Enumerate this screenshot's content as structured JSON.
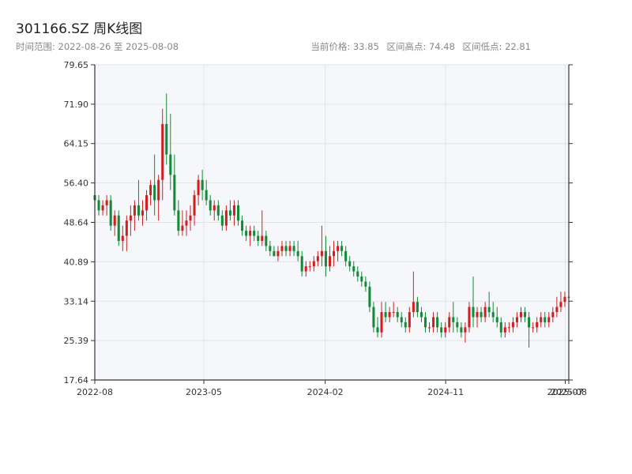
{
  "header": {
    "title": "301166.SZ 周K线图",
    "range_text": "时间范围: 2022-08-26 至 2025-08-08",
    "current_price": "当前价格: 33.85",
    "high": "区间高点: 74.48",
    "low": "区间低点: 22.81"
  },
  "colors": {
    "up": "#d11f1f",
    "down": "#138a36",
    "plot_bg": "#f5f7fa",
    "grid": "#dfe3e8",
    "axis": "#333333"
  },
  "chart_data": {
    "type": "candlestick",
    "title": "301166.SZ 周K线图",
    "ylim": [
      17.64,
      79.65
    ],
    "y_ticks": [
      "79.65",
      "71.90",
      "64.15",
      "56.40",
      "48.64",
      "40.89",
      "33.14",
      "25.39",
      "17.64"
    ],
    "x_range": [
      "2022-08-26",
      "2025-08-08"
    ],
    "x_ticks": [
      {
        "label": "2022-08",
        "date": "2022-08-26"
      },
      {
        "label": "2023-05",
        "date": "2023-05-01"
      },
      {
        "label": "2024-02",
        "date": "2024-02-01"
      },
      {
        "label": "2024-11",
        "date": "2024-11-01"
      },
      {
        "label": "2025-07",
        "date": "2025-07-31"
      },
      {
        "label": "2025-08",
        "date": "2025-08-08"
      }
    ],
    "grid": true,
    "ohlc_weekly": [
      [
        54,
        56,
        51,
        53
      ],
      [
        53,
        54,
        50,
        51
      ],
      [
        51,
        53,
        50,
        52
      ],
      [
        52,
        54,
        50,
        53
      ],
      [
        53,
        54,
        47,
        48
      ],
      [
        48,
        51,
        46,
        50
      ],
      [
        50,
        51,
        44,
        45
      ],
      [
        45,
        48,
        43,
        46
      ],
      [
        46,
        50,
        43,
        49
      ],
      [
        49,
        52,
        46,
        50
      ],
      [
        50,
        53,
        47,
        52
      ],
      [
        52,
        57,
        49,
        50
      ],
      [
        50,
        53,
        48,
        51
      ],
      [
        51,
        55,
        49,
        54
      ],
      [
        54,
        57,
        52,
        56
      ],
      [
        56,
        62,
        50,
        53
      ],
      [
        53,
        58,
        49,
        57
      ],
      [
        57,
        71,
        53,
        68
      ],
      [
        68,
        74,
        60,
        62
      ],
      [
        62,
        70,
        55,
        58
      ],
      [
        58,
        62,
        50,
        51
      ],
      [
        51,
        53,
        46,
        47
      ],
      [
        47,
        51,
        46,
        48
      ],
      [
        48,
        51,
        46,
        49
      ],
      [
        49,
        52,
        47,
        50
      ],
      [
        50,
        55,
        48,
        54
      ],
      [
        54,
        58,
        52,
        57
      ],
      [
        57,
        59,
        53,
        55
      ],
      [
        55,
        57,
        52,
        53
      ],
      [
        53,
        54,
        50,
        51
      ],
      [
        51,
        53,
        49,
        52
      ],
      [
        52,
        53,
        49,
        50
      ],
      [
        50,
        51,
        47,
        48
      ],
      [
        48,
        52,
        47,
        51
      ],
      [
        51,
        53,
        49,
        50
      ],
      [
        50,
        53,
        48,
        52
      ],
      [
        52,
        53,
        48,
        49
      ],
      [
        49,
        50,
        46,
        47
      ],
      [
        47,
        48,
        45,
        46
      ],
      [
        46,
        48,
        44,
        47
      ],
      [
        47,
        48,
        45,
        46
      ],
      [
        46,
        47,
        44,
        45
      ],
      [
        45,
        51,
        44,
        46
      ],
      [
        46,
        47,
        43,
        44
      ],
      [
        44,
        45,
        42,
        43
      ],
      [
        43,
        44,
        42,
        42
      ],
      [
        42,
        44,
        41,
        43
      ],
      [
        43,
        45,
        42,
        44
      ],
      [
        44,
        45,
        42,
        43
      ],
      [
        43,
        45,
        42,
        44
      ],
      [
        44,
        45,
        42,
        43
      ],
      [
        43,
        45,
        41,
        42
      ],
      [
        42,
        43,
        38,
        39
      ],
      [
        39,
        41,
        38,
        40
      ],
      [
        40,
        41,
        39,
        40
      ],
      [
        40,
        42,
        39,
        41
      ],
      [
        41,
        43,
        40,
        42
      ],
      [
        42,
        48,
        40,
        43
      ],
      [
        43,
        46,
        38,
        40
      ],
      [
        40,
        44,
        39,
        42
      ],
      [
        42,
        45,
        40,
        43
      ],
      [
        43,
        45,
        41,
        44
      ],
      [
        44,
        45,
        42,
        43
      ],
      [
        43,
        44,
        40,
        41
      ],
      [
        41,
        42,
        39,
        40
      ],
      [
        40,
        41,
        38,
        39
      ],
      [
        39,
        40,
        37,
        38
      ],
      [
        38,
        39,
        36,
        37
      ],
      [
        37,
        38,
        35,
        36
      ],
      [
        36,
        37,
        31,
        32
      ],
      [
        32,
        33,
        27,
        28
      ],
      [
        28,
        30,
        26,
        27
      ],
      [
        27,
        33,
        26,
        31
      ],
      [
        31,
        33,
        29,
        30
      ],
      [
        30,
        32,
        29,
        31
      ],
      [
        31,
        33,
        30,
        31
      ],
      [
        31,
        32,
        29,
        30
      ],
      [
        30,
        31,
        28,
        29
      ],
      [
        29,
        30,
        27,
        28
      ],
      [
        28,
        32,
        27,
        31
      ],
      [
        31,
        39,
        30,
        33
      ],
      [
        33,
        34,
        30,
        31
      ],
      [
        31,
        32,
        29,
        30
      ],
      [
        30,
        31,
        27,
        28
      ],
      [
        28,
        29,
        27,
        28
      ],
      [
        28,
        31,
        27,
        30
      ],
      [
        30,
        31,
        27,
        28
      ],
      [
        28,
        29,
        26,
        27
      ],
      [
        27,
        29,
        26,
        28
      ],
      [
        28,
        31,
        27,
        30
      ],
      [
        30,
        33,
        27,
        29
      ],
      [
        29,
        30,
        27,
        28
      ],
      [
        28,
        29,
        26,
        27
      ],
      [
        27,
        29,
        25,
        28
      ],
      [
        28,
        33,
        27,
        32
      ],
      [
        32,
        38,
        28,
        30
      ],
      [
        30,
        32,
        28,
        31
      ],
      [
        31,
        32,
        29,
        30
      ],
      [
        30,
        33,
        29,
        32
      ],
      [
        32,
        35,
        30,
        31
      ],
      [
        31,
        33,
        29,
        30
      ],
      [
        30,
        32,
        28,
        29
      ],
      [
        29,
        30,
        26,
        27
      ],
      [
        27,
        29,
        26,
        28
      ],
      [
        28,
        29,
        27,
        28
      ],
      [
        28,
        30,
        27,
        29
      ],
      [
        29,
        31,
        28,
        30
      ],
      [
        30,
        32,
        29,
        31
      ],
      [
        31,
        32,
        29,
        30
      ],
      [
        30,
        31,
        24,
        28
      ],
      [
        28,
        29,
        27,
        28
      ],
      [
        28,
        30,
        27,
        29
      ],
      [
        29,
        31,
        28,
        30
      ],
      [
        30,
        31,
        28,
        29
      ],
      [
        29,
        31,
        28,
        30
      ],
      [
        30,
        32,
        29,
        31
      ],
      [
        31,
        34,
        30,
        32
      ],
      [
        32,
        35,
        31,
        33
      ],
      [
        33,
        35,
        32,
        34
      ],
      [
        34,
        35,
        32,
        33.85
      ]
    ]
  }
}
